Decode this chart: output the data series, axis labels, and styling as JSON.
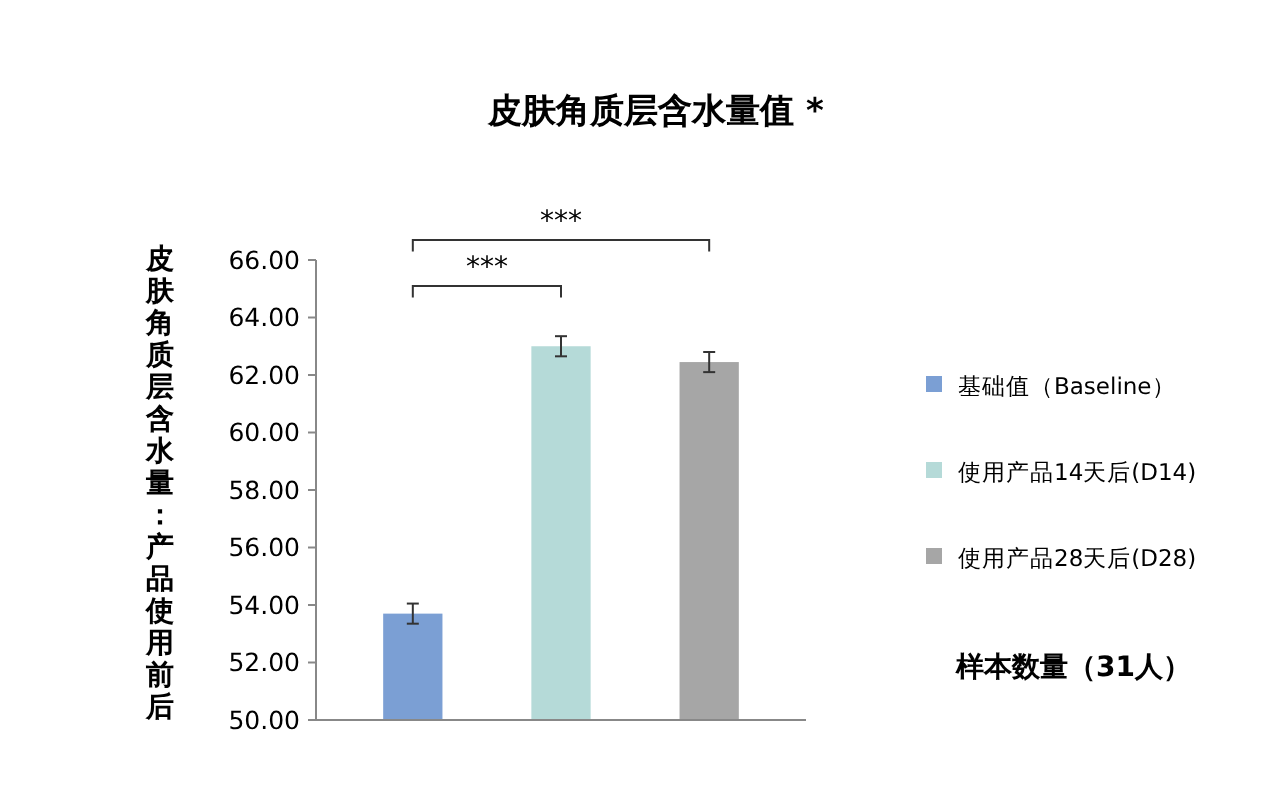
{
  "chart_data": {
    "type": "bar",
    "title": "皮肤角质层含水量值 *",
    "ylabel": "皮肤角质层含水量：产品使用前后",
    "categories": [
      null
    ],
    "series": [
      {
        "name": "基础值（Baseline）",
        "color": "#7b9fd4",
        "values": [
          53.7
        ],
        "errors": [
          0.35
        ]
      },
      {
        "name": "使用产品14天后(D14)",
        "color": "#b5dad8",
        "values": [
          63.0
        ],
        "errors": [
          0.35
        ]
      },
      {
        "name": "使用产品28天后(D28)",
        "color": "#a6a6a6",
        "values": [
          62.45
        ],
        "errors": [
          0.35
        ]
      }
    ],
    "ylim": [
      50,
      66
    ],
    "yticks": [
      {
        "value": 50,
        "label": "50.00"
      },
      {
        "value": 52,
        "label": "52.00"
      },
      {
        "value": 54,
        "label": "54.00"
      },
      {
        "value": 56,
        "label": "56.00"
      },
      {
        "value": 58,
        "label": "58.00"
      },
      {
        "value": 60,
        "label": "60.00"
      },
      {
        "value": 62,
        "label": "62.00"
      },
      {
        "value": 64,
        "label": "64.00"
      },
      {
        "value": 66,
        "label": "66.00"
      }
    ],
    "grid": false,
    "legend": "right",
    "annotations": [
      "***",
      "***",
      "样本数量（31人）"
    ]
  }
}
